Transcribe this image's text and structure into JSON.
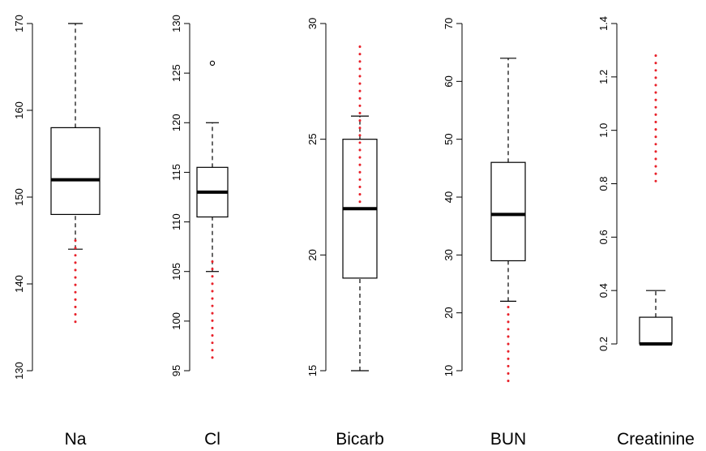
{
  "chart_data": [
    {
      "type": "box",
      "label": "Na",
      "ylim": [
        130,
        170
      ],
      "ticks": [
        130,
        140,
        150,
        160,
        170
      ],
      "box": {
        "whisker_low": 144,
        "q1": 148,
        "median": 152,
        "q3": 158,
        "whisker_high": 170
      },
      "outliers": [],
      "reference_range": [
        135,
        145
      ]
    },
    {
      "type": "box",
      "label": "Cl",
      "ylim": [
        95,
        130
      ],
      "ticks": [
        95,
        100,
        105,
        110,
        115,
        120,
        125,
        130
      ],
      "box": {
        "whisker_low": 105,
        "q1": 110.5,
        "median": 113,
        "q3": 115.5,
        "whisker_high": 120
      },
      "outliers": [
        126
      ],
      "reference_range": [
        96,
        106
      ]
    },
    {
      "type": "box",
      "label": "Bicarb",
      "ylim": [
        15,
        30
      ],
      "ticks": [
        15,
        20,
        25,
        30
      ],
      "box": {
        "whisker_low": 15,
        "q1": 19,
        "median": 22,
        "q3": 25,
        "whisker_high": 26
      },
      "outliers": [],
      "reference_range": [
        22,
        29
      ]
    },
    {
      "type": "box",
      "label": "BUN",
      "ylim": [
        5,
        70
      ],
      "ticks": [
        10,
        20,
        30,
        40,
        50,
        60,
        70
      ],
      "box": {
        "whisker_low": 22,
        "q1": 29,
        "median": 37,
        "q3": 46,
        "whisker_high": 64
      },
      "outliers": [],
      "reference_range": [
        8,
        21
      ]
    },
    {
      "type": "box",
      "label": "Creatinine",
      "ylim": [
        0.2,
        1.4
      ],
      "ticks": [
        "0.2",
        "0.4",
        "0.6",
        "0.8",
        "1.0",
        "1.2",
        "1.4"
      ],
      "box": {
        "whisker_low": 0.2,
        "q1": 0.2,
        "median": 0.2,
        "q3": 0.3,
        "whisker_high": 0.4
      },
      "outliers": [],
      "reference_range": [
        0.8,
        1.28
      ]
    }
  ],
  "colors": {
    "reference_dots": "#e8212a",
    "ink": "#000000"
  }
}
